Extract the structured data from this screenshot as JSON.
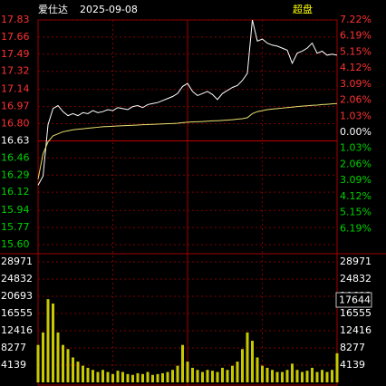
{
  "chart_data": [
    {
      "type": "line",
      "title": "爱仕达",
      "subtitle": "2025-09-08",
      "annotation": "超盘",
      "up_color": "#ff3232",
      "down_color": "#00d200",
      "flat_color": "#ffffff",
      "ylim": [
        15.6,
        17.83
      ],
      "yticks": [
        17.83,
        17.66,
        17.49,
        17.32,
        17.14,
        16.97,
        {
          "value": 16.8,
          "label": "16.80"
        },
        16.63,
        16.46,
        16.29,
        16.12,
        15.94,
        15.77,
        {
          "value": 15.6,
          "label": "15.60"
        }
      ],
      "y2lim": [
        -7.22,
        7.22
      ],
      "y2ticks": [
        {
          "value": 7.22,
          "label": "7.22%"
        },
        {
          "value": 6.19,
          "label": "6.19%"
        },
        {
          "value": 5.15,
          "label": "5.15%"
        },
        {
          "value": 4.12,
          "label": "4.12%"
        },
        {
          "value": 3.09,
          "label": "3.09%"
        },
        {
          "value": 2.06,
          "label": "2.06%"
        },
        {
          "value": 1.03,
          "label": "1.03%"
        },
        {
          "value": 0,
          "label": "0.00%"
        },
        {
          "value": -1.03,
          "label": "1.03%"
        },
        {
          "value": -2.06,
          "label": "2.06%"
        },
        {
          "value": -3.09,
          "label": "3.09%"
        },
        {
          "value": -4.12,
          "label": "4.12%"
        },
        {
          "value": -5.15,
          "label": "5.15%"
        },
        {
          "value": -6.19,
          "label": "6.19%"
        }
      ],
      "grid": true,
      "series": [
        {
          "color": "#ffffff",
          "values": [
            16.19,
            16.28,
            16.79,
            16.95,
            16.98,
            16.92,
            16.88,
            16.9,
            16.88,
            16.91,
            16.9,
            16.93,
            16.91,
            16.92,
            16.94,
            16.93,
            16.96,
            16.95,
            16.94,
            16.97,
            16.98,
            16.96,
            16.99,
            17.0,
            17.01,
            17.03,
            17.05,
            17.07,
            17.1,
            17.17,
            17.2,
            17.12,
            17.08,
            17.1,
            17.12,
            17.09,
            17.04,
            17.1,
            17.13,
            17.16,
            17.18,
            17.23,
            17.3,
            17.83,
            17.62,
            17.64,
            17.6,
            17.58,
            17.57,
            17.55,
            17.53,
            17.4,
            17.5,
            17.52,
            17.55,
            17.6,
            17.5,
            17.52,
            17.48,
            17.49,
            17.48
          ]
        },
        {
          "color": "#e8e070",
          "values": [
            16.25,
            16.5,
            16.62,
            16.68,
            16.7,
            16.72,
            16.73,
            16.74,
            16.745,
            16.75,
            16.755,
            16.76,
            16.765,
            16.77,
            16.772,
            16.775,
            16.778,
            16.78,
            16.782,
            16.785,
            16.787,
            16.79,
            16.792,
            16.794,
            16.796,
            16.798,
            16.8,
            16.802,
            16.805,
            16.81,
            16.815,
            16.818,
            16.82,
            16.822,
            16.825,
            16.828,
            16.83,
            16.833,
            16.836,
            16.84,
            16.845,
            16.85,
            16.86,
            16.9,
            16.92,
            16.93,
            16.94,
            16.945,
            16.95,
            16.955,
            16.96,
            16.965,
            16.97,
            16.975,
            16.978,
            16.982,
            16.985,
            16.99,
            16.993,
            16.997,
            17.0
          ]
        }
      ]
    },
    {
      "type": "bar",
      "color": "#c8c800",
      "annotation": "17644",
      "ylim": [
        0,
        28971
      ],
      "yticks": [
        28971,
        24832,
        20693,
        16555,
        12416,
        8277,
        4139
      ],
      "values": [
        9000,
        12000,
        20000,
        18950,
        12000,
        9000,
        8000,
        6000,
        5000,
        4000,
        3500,
        3000,
        2500,
        3000,
        2500,
        2000,
        2800,
        2500,
        2000,
        1800,
        2200,
        2000,
        2500,
        1800,
        2000,
        2200,
        2500,
        3000,
        4000,
        9000,
        5000,
        3500,
        3000,
        2500,
        3000,
        2800,
        2500,
        3500,
        3000,
        4000,
        5000,
        8000,
        12000,
        10000,
        6000,
        4000,
        3500,
        3000,
        2500,
        2500,
        3000,
        4500,
        3000,
        2500,
        2800,
        3500,
        2500,
        3000,
        2500,
        3000,
        7000
      ]
    }
  ]
}
